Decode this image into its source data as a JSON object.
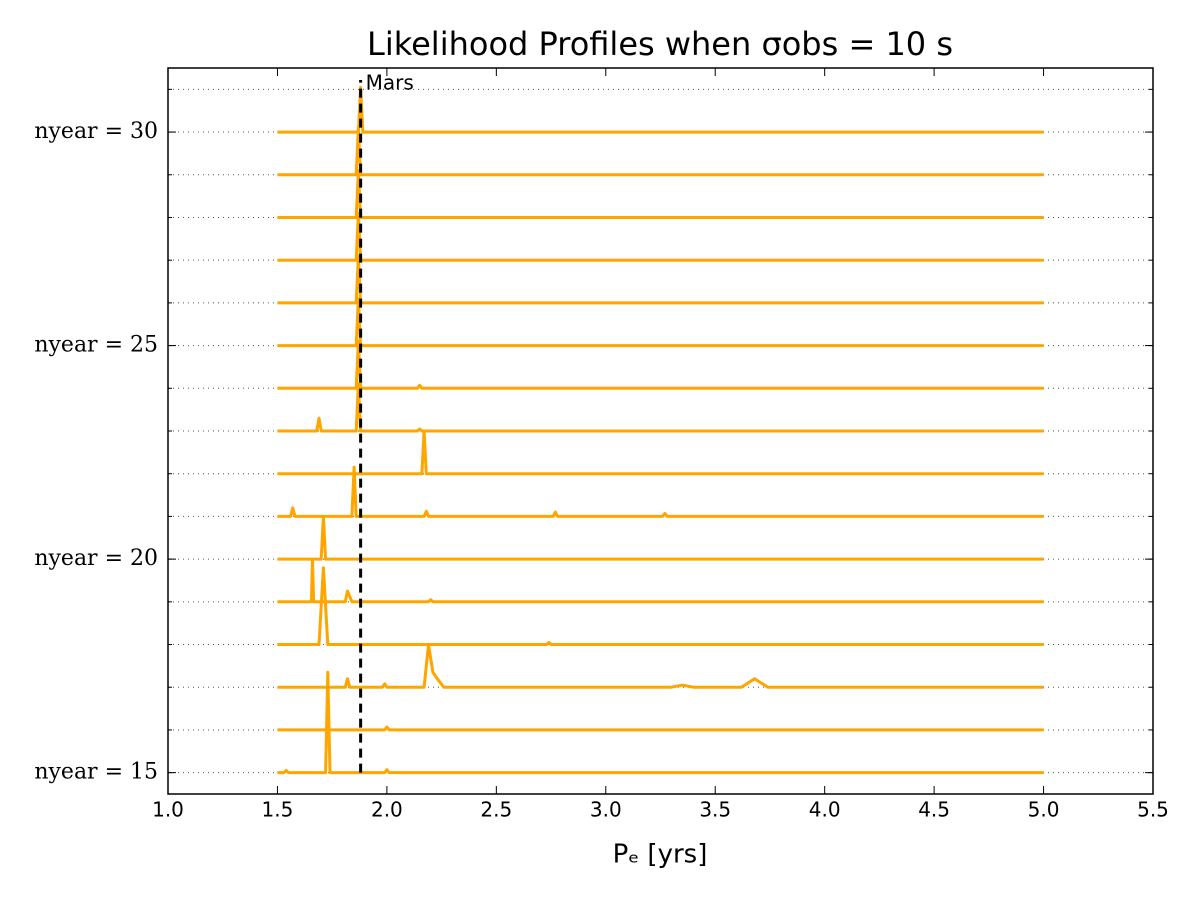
{
  "chart_data": {
    "type": "line",
    "title": "Likelihood Profiles when σobs = 10 s",
    "x_label": "Pₑ [yrs]",
    "color": "#ffa500",
    "xlim": [
      1.0,
      5.5
    ],
    "xticks": [
      {
        "value": 1.0,
        "label": "1.0"
      },
      {
        "value": 1.5,
        "label": "1.5"
      },
      {
        "value": 2.0,
        "label": "2.0"
      },
      {
        "value": 2.5,
        "label": "2.5"
      },
      {
        "value": 3.0,
        "label": "3.0"
      },
      {
        "value": 3.5,
        "label": "3.5"
      },
      {
        "value": 4.0,
        "label": "4.0"
      },
      {
        "value": 4.5,
        "label": "4.5"
      },
      {
        "value": 5.0,
        "label": "5.0"
      },
      {
        "value": 5.5,
        "label": "5.5"
      }
    ],
    "ylim": [
      14.5,
      31.5
    ],
    "yticks": [
      {
        "value": 15,
        "label": "nyear = 15"
      },
      {
        "value": 20,
        "label": "nyear = 20"
      },
      {
        "value": 25,
        "label": "nyear = 25"
      },
      {
        "value": 30,
        "label": "nyear = 30"
      }
    ],
    "yminor": [
      15,
      16,
      17,
      18,
      19,
      20,
      21,
      22,
      23,
      24,
      25,
      26,
      27,
      28,
      29,
      30,
      31
    ],
    "grid": true,
    "reference_x": 1.88,
    "annotation": "Mars",
    "series": [
      {
        "x": [
          1.5,
          1.53,
          1.54,
          1.55,
          1.72,
          1.73,
          1.74,
          1.99,
          2.0,
          2.01,
          5.0
        ],
        "values": [
          15,
          15,
          15.05,
          15,
          15,
          17.35,
          15,
          15,
          15.07,
          15,
          15
        ]
      },
      {
        "x": [
          1.5,
          1.99,
          2.0,
          2.01,
          5.0
        ],
        "values": [
          16,
          16,
          16.07,
          16,
          16
        ]
      },
      {
        "x": [
          1.5,
          1.81,
          1.82,
          1.83,
          1.98,
          1.99,
          2.0,
          2.17,
          2.19,
          2.21,
          2.23,
          2.26,
          3.3,
          3.35,
          3.4,
          3.62,
          3.68,
          3.74,
          5.0
        ],
        "values": [
          17,
          17,
          17.2,
          17,
          17,
          17.08,
          17,
          17,
          18.0,
          17.35,
          17.2,
          17,
          17,
          17.05,
          17,
          17,
          17.2,
          17,
          17
        ]
      },
      {
        "x": [
          1.5,
          1.69,
          1.71,
          1.73,
          2.73,
          2.74,
          2.75,
          5.0
        ],
        "values": [
          18,
          18,
          19.8,
          18,
          18,
          18.05,
          18,
          18
        ]
      },
      {
        "x": [
          1.5,
          1.655,
          1.66,
          1.665,
          1.81,
          1.82,
          1.84,
          2.19,
          2.2,
          2.21,
          5.0
        ],
        "values": [
          19,
          19,
          20.0,
          19,
          19,
          19.25,
          19,
          19,
          19.05,
          19,
          19
        ]
      },
      {
        "x": [
          1.5,
          1.7,
          1.71,
          1.72,
          5.0
        ],
        "values": [
          20,
          20,
          21.0,
          20,
          20
        ]
      },
      {
        "x": [
          1.5,
          1.56,
          1.57,
          1.58,
          1.84,
          1.85,
          1.86,
          2.17,
          2.18,
          2.19,
          2.76,
          2.77,
          2.78,
          3.26,
          3.27,
          3.28,
          5.0
        ],
        "values": [
          21,
          21,
          21.2,
          21,
          21,
          22.15,
          21,
          21,
          21.12,
          21,
          21,
          21.1,
          21,
          21,
          21.07,
          21,
          21
        ]
      },
      {
        "x": [
          1.5,
          2.16,
          2.17,
          2.18,
          5.0
        ],
        "values": [
          22,
          22,
          23.0,
          22,
          22
        ]
      },
      {
        "x": [
          1.5,
          1.68,
          1.69,
          1.7,
          1.86,
          1.87,
          1.88,
          2.14,
          2.15,
          2.16,
          5.0
        ],
        "values": [
          23,
          23,
          23.3,
          23,
          23,
          24.1,
          23,
          23,
          23.05,
          23,
          23
        ]
      },
      {
        "x": [
          1.5,
          1.86,
          1.87,
          1.88,
          2.14,
          2.15,
          2.16,
          5.0
        ],
        "values": [
          24,
          24,
          25.1,
          24,
          24,
          24.07,
          24,
          24
        ]
      },
      {
        "x": [
          1.5,
          1.86,
          1.87,
          1.88,
          5.0
        ],
        "values": [
          25,
          25,
          26.1,
          25,
          25
        ]
      },
      {
        "x": [
          1.5,
          1.86,
          1.87,
          1.88,
          5.0
        ],
        "values": [
          26,
          26,
          27.1,
          26,
          26
        ]
      },
      {
        "x": [
          1.5,
          1.86,
          1.87,
          1.88,
          5.0
        ],
        "values": [
          27,
          27,
          28.1,
          27,
          27
        ]
      },
      {
        "x": [
          1.5,
          1.86,
          1.87,
          1.88,
          5.0
        ],
        "values": [
          28,
          28,
          29.1,
          28,
          28
        ]
      },
      {
        "x": [
          1.5,
          1.86,
          1.87,
          1.88,
          5.0
        ],
        "values": [
          29,
          29,
          30.1,
          29,
          29
        ]
      },
      {
        "x": [
          1.5,
          1.87,
          1.88,
          1.89,
          5.0
        ],
        "values": [
          30,
          30,
          31.05,
          30,
          30
        ]
      }
    ]
  }
}
